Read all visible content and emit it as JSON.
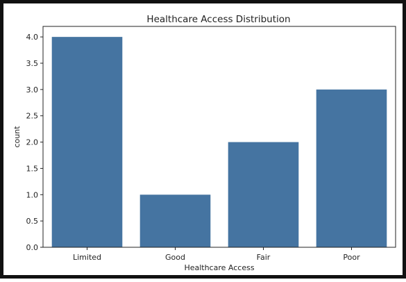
{
  "chart_data": {
    "type": "bar",
    "title": "Healthcare Access Distribution",
    "xlabel": "Healthcare Access",
    "ylabel": "count",
    "categories": [
      "Limited",
      "Good",
      "Fair",
      "Poor"
    ],
    "values": [
      4,
      1,
      2,
      3
    ],
    "ylim": [
      0,
      4.2
    ],
    "yticks": [
      "0.0",
      "0.5",
      "1.0",
      "1.5",
      "2.0",
      "2.5",
      "3.0",
      "3.5",
      "4.0"
    ],
    "bar_color": "#4574a1",
    "grid": false,
    "legend": "none"
  }
}
